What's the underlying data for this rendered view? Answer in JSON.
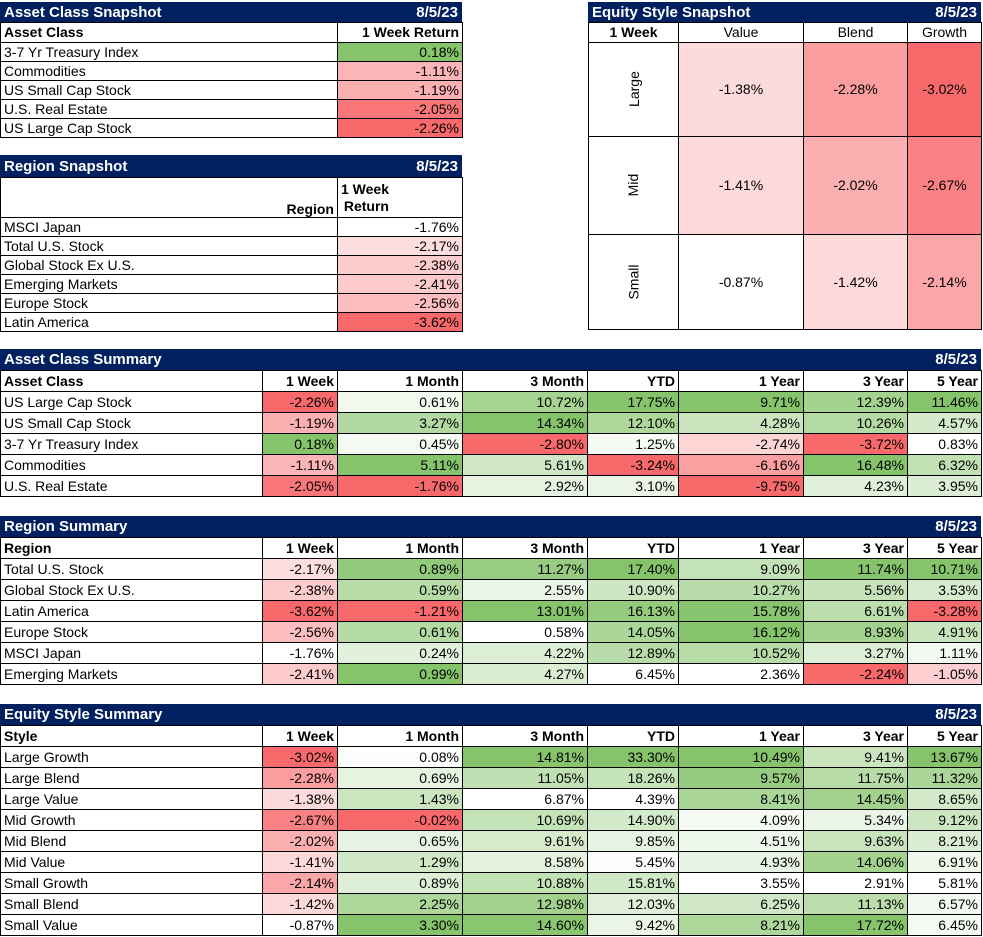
{
  "asset_class_snapshot": {
    "title": "Asset Class Snapshot",
    "date": "8/5/23",
    "headers": [
      "Asset Class",
      "1 Week Return"
    ],
    "rows": [
      [
        "3-7 Yr Treasury Index",
        "0.18%"
      ],
      [
        "Commodities",
        "-1.11%"
      ],
      [
        "US Small Cap Stock",
        "-1.19%"
      ],
      [
        "U.S. Real Estate",
        "-2.05%"
      ],
      [
        "US Large Cap Stock",
        "-2.26%"
      ]
    ]
  },
  "region_snapshot": {
    "title": "Region Snapshot",
    "date": "8/5/23",
    "headers": [
      "Region",
      "1 Week\nReturn"
    ],
    "rows": [
      [
        "MSCI Japan",
        "-1.76%"
      ],
      [
        "Total U.S. Stock",
        "-2.17%"
      ],
      [
        "Global Stock Ex U.S.",
        "-2.38%"
      ],
      [
        "Emerging Markets",
        "-2.41%"
      ],
      [
        "Europe Stock",
        "-2.56%"
      ],
      [
        "Latin America",
        "-3.62%"
      ]
    ]
  },
  "equity_style_snapshot": {
    "title": "Equity Style Snapshot",
    "date": "8/5/23",
    "headers": [
      "1 Week",
      "Value",
      "Blend",
      "Growth"
    ],
    "rows": [
      [
        "Large",
        "-1.38%",
        "-2.28%",
        "-3.02%"
      ],
      [
        "Mid",
        "-1.41%",
        "-2.02%",
        "-2.67%"
      ],
      [
        "Small",
        "-0.87%",
        "-1.42%",
        "-2.14%"
      ]
    ]
  },
  "asset_class_summary": {
    "title": "Asset Class Summary",
    "date": "8/5/23",
    "headers": [
      "Asset Class",
      "1 Week",
      "1 Month",
      "3 Month",
      "YTD",
      "1 Year",
      "3 Year",
      "5 Year"
    ],
    "rows": [
      [
        "US Large Cap Stock",
        "-2.26%",
        "0.61%",
        "10.72%",
        "17.75%",
        "9.71%",
        "12.39%",
        "11.46%"
      ],
      [
        "US Small Cap Stock",
        "-1.19%",
        "3.27%",
        "14.34%",
        "12.10%",
        "4.28%",
        "10.26%",
        "4.57%"
      ],
      [
        "3-7 Yr Treasury Index",
        "0.18%",
        "0.45%",
        "-2.80%",
        "1.25%",
        "-2.74%",
        "-3.72%",
        "0.83%"
      ],
      [
        "Commodities",
        "-1.11%",
        "5.11%",
        "5.61%",
        "-3.24%",
        "-6.16%",
        "16.48%",
        "6.32%"
      ],
      [
        "U.S. Real Estate",
        "-2.05%",
        "-1.76%",
        "2.92%",
        "3.10%",
        "-9.75%",
        "4.23%",
        "3.95%"
      ]
    ]
  },
  "region_summary": {
    "title": "Region Summary",
    "date": "8/5/23",
    "headers": [
      "Region",
      "1 Week",
      "1 Month",
      "3 Month",
      "YTD",
      "1 Year",
      "3 Year",
      "5 Year"
    ],
    "rows": [
      [
        "Total U.S. Stock",
        "-2.17%",
        "0.89%",
        "11.27%",
        "17.40%",
        "9.09%",
        "11.74%",
        "10.71%"
      ],
      [
        "Global Stock Ex U.S.",
        "-2.38%",
        "0.59%",
        "2.55%",
        "10.90%",
        "10.27%",
        "5.56%",
        "3.53%"
      ],
      [
        "Latin America",
        "-3.62%",
        "-1.21%",
        "13.01%",
        "16.13%",
        "15.78%",
        "6.61%",
        "-3.28%"
      ],
      [
        "Europe Stock",
        "-2.56%",
        "0.61%",
        "0.58%",
        "14.05%",
        "16.12%",
        "8.93%",
        "4.91%"
      ],
      [
        "MSCI Japan",
        "-1.76%",
        "0.24%",
        "4.22%",
        "12.89%",
        "10.52%",
        "3.27%",
        "1.11%"
      ],
      [
        "Emerging Markets",
        "-2.41%",
        "0.99%",
        "4.27%",
        "6.45%",
        "2.36%",
        "-2.24%",
        "-1.05%"
      ]
    ]
  },
  "equity_style_summary": {
    "title": "Equity Style Summary",
    "date": "8/5/23",
    "headers": [
      "Style",
      "1 Week",
      "1 Month",
      "3 Month",
      "YTD",
      "1 Year",
      "3 Year",
      "5 Year"
    ],
    "rows": [
      [
        "Large Growth",
        "-3.02%",
        "0.08%",
        "14.81%",
        "33.30%",
        "10.49%",
        "9.41%",
        "13.67%"
      ],
      [
        "Large Blend",
        "-2.28%",
        "0.69%",
        "11.05%",
        "18.26%",
        "9.57%",
        "11.75%",
        "11.32%"
      ],
      [
        "Large Value",
        "-1.38%",
        "1.43%",
        "6.87%",
        "4.39%",
        "8.41%",
        "14.45%",
        "8.65%"
      ],
      [
        "Mid Growth",
        "-2.67%",
        "-0.02%",
        "10.69%",
        "14.90%",
        "4.09%",
        "5.34%",
        "9.12%"
      ],
      [
        "Mid Blend",
        "-2.02%",
        "0.65%",
        "9.61%",
        "9.85%",
        "4.51%",
        "9.63%",
        "8.21%"
      ],
      [
        "Mid Value",
        "-1.41%",
        "1.29%",
        "8.58%",
        "5.45%",
        "4.93%",
        "14.06%",
        "6.91%"
      ],
      [
        "Small Growth",
        "-2.14%",
        "0.89%",
        "10.88%",
        "15.81%",
        "3.55%",
        "2.91%",
        "5.81%"
      ],
      [
        "Small Blend",
        "-1.42%",
        "2.25%",
        "12.98%",
        "12.03%",
        "6.25%",
        "11.13%",
        "6.57%"
      ],
      [
        "Small Value",
        "-0.87%",
        "3.30%",
        "14.60%",
        "9.42%",
        "8.21%",
        "17.72%",
        "6.45%"
      ]
    ]
  }
}
